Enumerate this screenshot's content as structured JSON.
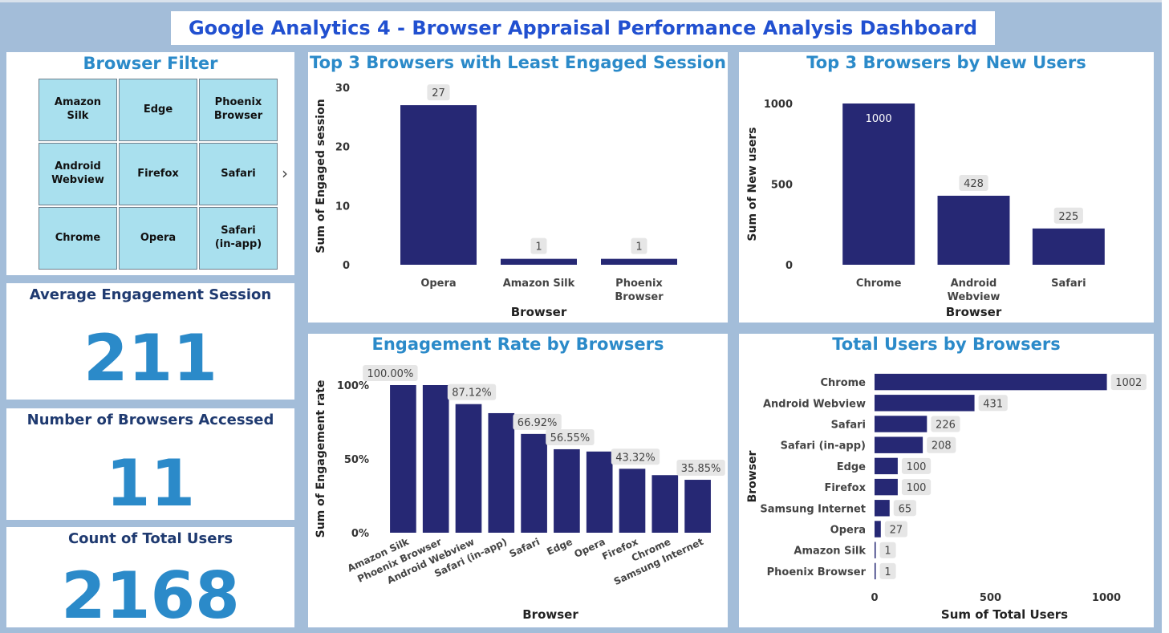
{
  "dashboard": {
    "title": "Google Analytics 4 - Browser Appraisal Performance Analysis Dashboard"
  },
  "browser_filter": {
    "title": "Browser Filter",
    "tiles": [
      "Amazon\nSilk",
      "Edge",
      "Phoenix\nBrowser",
      "Android\nWebview",
      "Firefox",
      "Safari",
      "Chrome",
      "Opera",
      "Safari\n(in-app)"
    ],
    "next_icon": "chevron-right-icon"
  },
  "kpis": {
    "avg_engagement": {
      "label": "Average Engagement Session",
      "value": "211"
    },
    "browsers_accessed": {
      "label": "Number of Browsers Accessed",
      "value": "11"
    },
    "total_users": {
      "label": "Count of Total Users",
      "value": "2168"
    }
  },
  "colors": {
    "bar": "#262874",
    "label_bg": "#e6e6e6",
    "title": "#2b8ac9",
    "header": "#2150d0",
    "kpi_label": "#1f3a70"
  },
  "chart_data": [
    {
      "type": "bar",
      "title": "Top 3 Browsers with Least Engaged Session",
      "categories": [
        "Opera",
        "Amazon Silk",
        "Phoenix\nBrowser"
      ],
      "values": [
        27,
        1,
        1
      ],
      "data_labels": [
        "27",
        "1",
        "1"
      ],
      "xlabel": "Browser",
      "ylabel": "Sum of Engaged session",
      "ylim": [
        0,
        30
      ],
      "yticks": [
        0,
        10,
        20,
        30
      ],
      "ytick_labels": [
        "0",
        "10",
        "20",
        "30"
      ],
      "grid": false
    },
    {
      "type": "bar",
      "title": "Top 3 Browsers by New Users",
      "categories": [
        "Chrome",
        "Android\nWebview",
        "Safari"
      ],
      "values": [
        1000,
        428,
        225
      ],
      "data_labels": [
        "1000",
        "428",
        "225"
      ],
      "xlabel": "Browser",
      "ylabel": "Sum of New users",
      "ylim": [
        0,
        1000
      ],
      "yticks": [
        0,
        500,
        1000
      ],
      "ytick_labels": [
        "0",
        "500",
        "1000"
      ],
      "grid": false
    },
    {
      "type": "bar",
      "title": "Engagement Rate by Browsers",
      "categories": [
        "Amazon Silk",
        "Phoenix Browser",
        "Android Webview",
        "Safari (in-app)",
        "Safari",
        "Edge",
        "Opera",
        "Firefox",
        "Chrome",
        "Samsung Internet"
      ],
      "values": [
        100,
        100,
        87.12,
        81,
        66.92,
        56.55,
        55,
        43.32,
        39,
        35.85
      ],
      "data_labels": [
        "100.00%",
        "",
        "87.12%",
        "",
        "66.92%",
        "56.55%",
        "",
        "43.32%",
        "",
        "35.85%"
      ],
      "xlabel": "Browser",
      "ylabel": "Sum of Engagement rate",
      "ylim": [
        0,
        100
      ],
      "yticks": [
        0,
        50,
        100
      ],
      "ytick_labels": [
        "0%",
        "50%",
        "100%"
      ],
      "grid": false
    },
    {
      "type": "bar",
      "orientation": "horizontal",
      "title": "Total Users by Browsers",
      "categories": [
        "Chrome",
        "Android Webview",
        "Safari",
        "Safari (in-app)",
        "Edge",
        "Firefox",
        "Samsung Internet",
        "Opera",
        "Amazon Silk",
        "Phoenix Browser"
      ],
      "values": [
        1002,
        431,
        226,
        208,
        100,
        100,
        65,
        27,
        1,
        1
      ],
      "data_labels": [
        "1002",
        "431",
        "226",
        "208",
        "100",
        "100",
        "65",
        "27",
        "1",
        "1"
      ],
      "xlabel": "Sum of Total Users",
      "ylabel": "Browser",
      "xlim": [
        0,
        1000
      ],
      "xticks": [
        0,
        500,
        1000
      ],
      "xtick_labels": [
        "0",
        "500",
        "1000"
      ],
      "grid": false
    }
  ]
}
